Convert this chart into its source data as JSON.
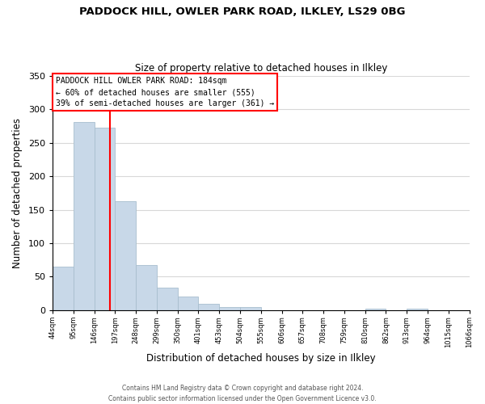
{
  "title": "PADDOCK HILL, OWLER PARK ROAD, ILKLEY, LS29 0BG",
  "subtitle": "Size of property relative to detached houses in Ilkley",
  "xlabel": "Distribution of detached houses by size in Ilkley",
  "ylabel": "Number of detached properties",
  "bar_values": [
    65,
    281,
    272,
    163,
    67,
    34,
    20,
    10,
    5,
    5,
    0,
    0,
    0,
    0,
    0,
    2,
    0,
    2,
    0,
    0
  ],
  "bar_labels": [
    "44sqm",
    "95sqm",
    "146sqm",
    "197sqm",
    "248sqm",
    "299sqm",
    "350sqm",
    "401sqm",
    "453sqm",
    "504sqm",
    "555sqm",
    "606sqm",
    "657sqm",
    "708sqm",
    "759sqm",
    "810sqm",
    "862sqm",
    "913sqm",
    "964sqm",
    "1015sqm",
    "1066sqm"
  ],
  "bar_color": "#c8d8e8",
  "bar_edge_color": "#a8bece",
  "ylim": [
    0,
    350
  ],
  "yticks": [
    0,
    50,
    100,
    150,
    200,
    250,
    300,
    350
  ],
  "annotation_line1": "PADDOCK HILL OWLER PARK ROAD: 184sqm",
  "annotation_line2": "← 60% of detached houses are smaller (555)",
  "annotation_line3": "39% of semi-detached houses are larger (361) →",
  "footer1": "Contains HM Land Registry data © Crown copyright and database right 2024.",
  "footer2": "Contains public sector information licensed under the Open Government Licence v3.0.",
  "bg_color": "#ffffff",
  "grid_color": "#d8d8d8"
}
